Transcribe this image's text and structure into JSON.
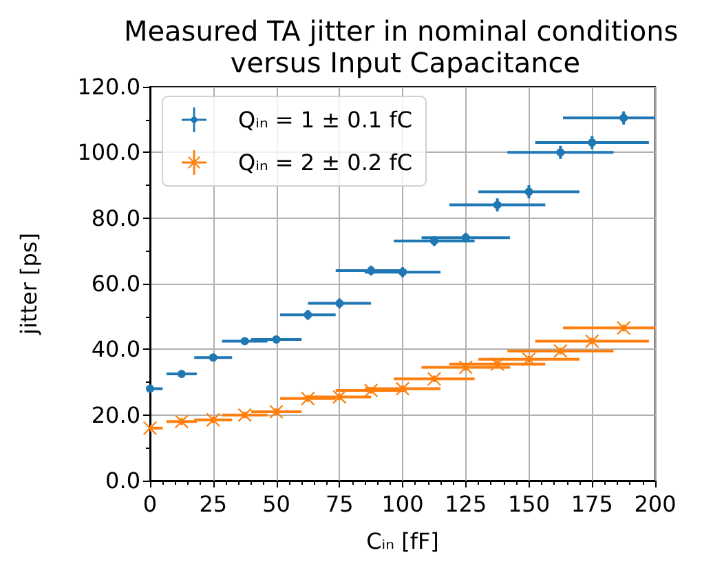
{
  "chart_data": {
    "type": "scatter",
    "title": "Measured TA jitter in nominal conditions versus Input Capacitance",
    "xlabel": "Cᵢₙ [fF]",
    "ylabel": "jitter [ps]",
    "x": [
      0,
      12.5,
      25,
      37.5,
      50,
      62.5,
      75,
      87.5,
      100,
      112.5,
      125,
      137.5,
      150,
      162.5,
      175,
      187.5
    ],
    "xlim": [
      0,
      200
    ],
    "xticks": [
      0,
      25,
      50,
      75,
      100,
      125,
      150,
      175,
      200
    ],
    "ylim": [
      0,
      120
    ],
    "yticks": [
      {
        "value": 0,
        "label": "0.0"
      },
      {
        "value": 20,
        "label": "20.0"
      },
      {
        "value": 40,
        "label": "40.0"
      },
      {
        "value": 60,
        "label": "60.0"
      },
      {
        "value": 80,
        "label": "80.0"
      },
      {
        "value": 100,
        "label": "100.0"
      },
      {
        "value": 120,
        "label": "120.0"
      }
    ],
    "grid": true,
    "legend": "top left",
    "series": [
      {
        "name": "Qᵢₙ = 1 ± 0.1 fC",
        "color": "#1f77b4",
        "marker": "circle",
        "values": [
          28,
          32.5,
          37.5,
          42.5,
          43,
          50.5,
          54,
          64,
          63.5,
          73,
          74,
          84,
          88,
          100,
          103,
          110.5
        ],
        "xerrors": [
          5,
          6,
          7.5,
          9,
          10,
          11,
          12.5,
          14,
          15,
          16,
          17.5,
          19,
          20,
          21,
          22.5,
          24
        ],
        "errors": [
          1,
          1,
          1,
          1,
          1,
          1.5,
          1.5,
          1.5,
          1.5,
          1.5,
          1.5,
          2,
          2,
          2,
          2,
          2
        ]
      },
      {
        "name": "Qᵢₙ = 2 ± 0.2 fC",
        "color": "#ff7f0e",
        "marker": "cross",
        "values": [
          16,
          18,
          18.5,
          20,
          21,
          25,
          25.5,
          27.5,
          28,
          31,
          34.5,
          35.5,
          37,
          39.5,
          42.5,
          46.5
        ],
        "xerrors": [
          5,
          6,
          7.5,
          9,
          10,
          11,
          12.5,
          14,
          15,
          16,
          17.5,
          19,
          20,
          21,
          22.5,
          24
        ],
        "errors": [
          1,
          1,
          1,
          1,
          1,
          1,
          1,
          1,
          1,
          1,
          1,
          1,
          1,
          1,
          1,
          1
        ]
      }
    ]
  }
}
